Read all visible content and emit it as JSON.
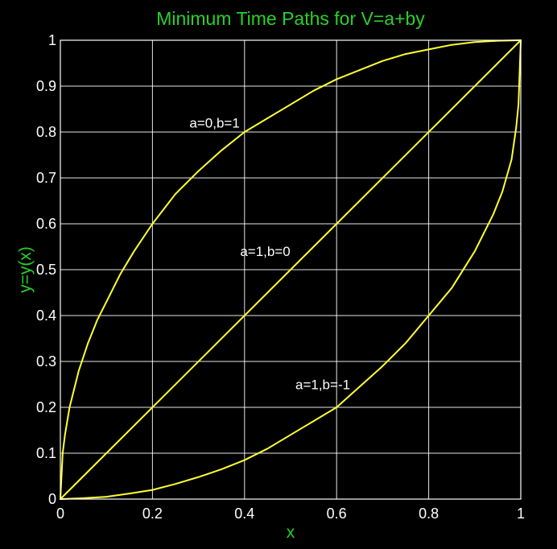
{
  "chart_data": {
    "type": "line",
    "title": "Minimum Time Paths for V=a+by",
    "xlabel": "x",
    "ylabel": "y=y(x)",
    "xlim": [
      0,
      1
    ],
    "ylim": [
      0,
      1
    ],
    "xticks": [
      0,
      0.2,
      0.4,
      0.6,
      0.8,
      1
    ],
    "xtick_labels": [
      "0",
      "0.2",
      "0.4",
      "0.6",
      "0.8",
      "1"
    ],
    "yticks": [
      0,
      0.1,
      0.2,
      0.3,
      0.4,
      0.5,
      0.6,
      0.7,
      0.8,
      0.9,
      1
    ],
    "ytick_labels": [
      "0",
      "0.1",
      "0.2",
      "0.3",
      "0.4",
      "0.5",
      "0.6",
      "0.7",
      "0.8",
      "0.9",
      "1"
    ],
    "grid": true,
    "colors": {
      "background": "#000000",
      "text_accent": "#2ad02a",
      "series": "#ffff33",
      "grid": "#ffffff",
      "tick_text": "#ffffff"
    },
    "series": [
      {
        "x": [
          0,
          0.005,
          0.01,
          0.02,
          0.04,
          0.06,
          0.08,
          0.1,
          0.13,
          0.16,
          0.2,
          0.25,
          0.3,
          0.35,
          0.4,
          0.45,
          0.5,
          0.55,
          0.6,
          0.65,
          0.7,
          0.75,
          0.8,
          0.85,
          0.9,
          0.95,
          1
        ],
        "y": [
          0,
          0.1,
          0.14,
          0.2,
          0.28,
          0.34,
          0.39,
          0.43,
          0.49,
          0.54,
          0.6,
          0.665,
          0.715,
          0.76,
          0.8,
          0.83,
          0.86,
          0.89,
          0.915,
          0.935,
          0.955,
          0.97,
          0.98,
          0.99,
          0.996,
          0.999,
          1
        ]
      },
      {
        "x": [
          0,
          1
        ],
        "y": [
          0,
          1
        ]
      },
      {
        "x": [
          0,
          0.05,
          0.1,
          0.15,
          0.2,
          0.25,
          0.3,
          0.35,
          0.4,
          0.45,
          0.5,
          0.55,
          0.6,
          0.65,
          0.7,
          0.75,
          0.8,
          0.85,
          0.9,
          0.94,
          0.96,
          0.98,
          0.99,
          0.995,
          1
        ],
        "y": [
          0,
          0.002,
          0.005,
          0.012,
          0.02,
          0.033,
          0.048,
          0.065,
          0.085,
          0.11,
          0.14,
          0.17,
          0.2,
          0.245,
          0.29,
          0.34,
          0.4,
          0.46,
          0.54,
          0.62,
          0.67,
          0.74,
          0.81,
          0.86,
          1
        ]
      }
    ],
    "annotations": [
      {
        "text": "a=0,b=1",
        "x": 0.335,
        "y": 0.82
      },
      {
        "text": "a=1,b=0",
        "x": 0.445,
        "y": 0.54
      },
      {
        "text": "a=1,b=-1",
        "x": 0.57,
        "y": 0.25
      }
    ]
  }
}
